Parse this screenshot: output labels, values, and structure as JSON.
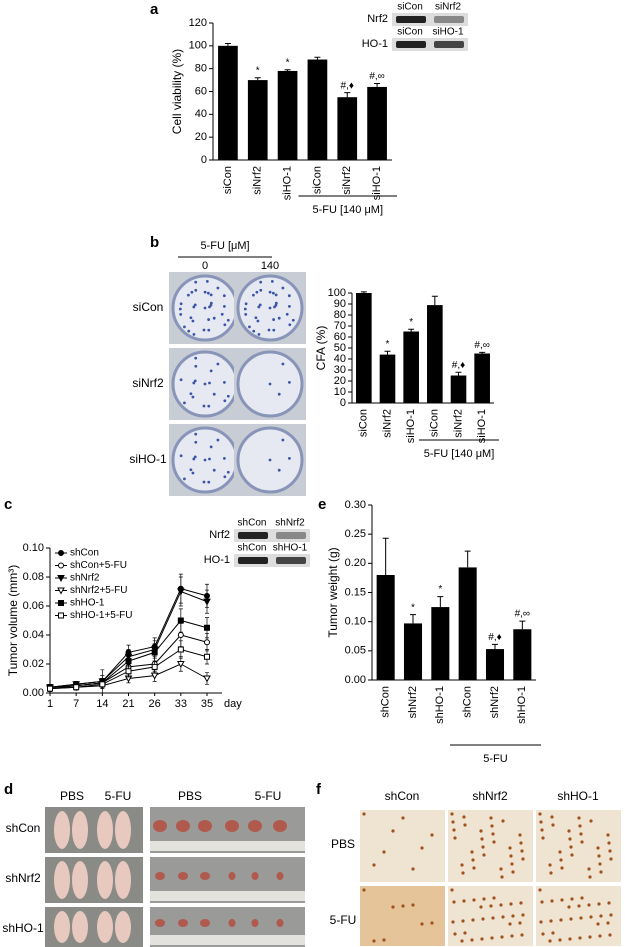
{
  "chart_data": [
    {
      "letter": "a",
      "type": "bar",
      "y_label": "Cell viability (%)",
      "categories": [
        "siCon",
        "siNrf2",
        "siHO-1",
        "siCon",
        "siNrf2",
        "siHO-1"
      ],
      "values": [
        100,
        70,
        78,
        88,
        55,
        64
      ],
      "errors": [
        2,
        2,
        1,
        2,
        4,
        3
      ],
      "annotations": [
        null,
        "*",
        "*",
        null,
        "#,♦",
        "#,∞"
      ],
      "group_label": "5-FU [140 μM]",
      "color": "#000000",
      "ylim": [
        0,
        120
      ],
      "yticks": [
        0,
        20,
        40,
        60,
        80,
        100,
        120
      ],
      "blot": [
        {
          "label": "Nrf2",
          "lanes": [
            "siCon",
            "siNrf2"
          ]
        },
        {
          "label": "HO-1",
          "lanes": [
            "siCon",
            "siHO-1"
          ]
        }
      ]
    },
    {
      "letter": "b",
      "type": "bar",
      "y_label": "CFA (%)",
      "categories": [
        "siCon",
        "siNrf2",
        "siHO-1",
        "siCon",
        "siNrf2",
        "siHO-1"
      ],
      "values": [
        100,
        44,
        65,
        89,
        25,
        45
      ],
      "errors": [
        1,
        3,
        2,
        8,
        3,
        1
      ],
      "annotations": [
        null,
        "*",
        "*",
        null,
        "#,♦",
        "#,∞"
      ],
      "group_label": "5-FU [140 μM]",
      "color": "#000000",
      "ylim": [
        0,
        100
      ],
      "yticks": [
        0,
        10,
        20,
        30,
        40,
        50,
        60,
        70,
        80,
        90,
        100
      ],
      "plates": {
        "header": "5-FU [μM]",
        "columns": [
          "0",
          "140"
        ],
        "rows": [
          "siCon",
          "siNrf2",
          "siHO-1"
        ]
      }
    },
    {
      "letter": "c",
      "type": "line",
      "y_label": "Tumor volume (mm³)",
      "x_unit": "day",
      "categories": [
        "1",
        "7",
        "14",
        "21",
        "26",
        "33",
        "35"
      ],
      "series": [
        {
          "name": "shCon",
          "marker": "circle",
          "color": "#000000",
          "values": [
            0.004,
            0.006,
            0.008,
            0.028,
            0.032,
            0.072,
            0.067
          ],
          "errors": [
            0.002,
            0.002,
            0.004,
            0.005,
            0.006,
            0.01,
            0.008
          ]
        },
        {
          "name": "shCon+5-FU",
          "marker": "circle-open",
          "color": "#000000",
          "values": [
            0.003,
            0.005,
            0.007,
            0.018,
            0.02,
            0.04,
            0.035
          ],
          "errors": [
            0.002,
            0.002,
            0.003,
            0.004,
            0.005,
            0.008,
            0.006
          ]
        },
        {
          "name": "shNrf2",
          "marker": "triangle",
          "color": "#000000",
          "values": [
            0.004,
            0.006,
            0.008,
            0.025,
            0.03,
            0.07,
            0.063
          ],
          "errors": [
            0.002,
            0.002,
            0.008,
            0.005,
            0.006,
            0.01,
            0.008
          ]
        },
        {
          "name": "shNrf2+5-FU",
          "marker": "triangle-open",
          "color": "#000000",
          "values": [
            0.003,
            0.004,
            0.005,
            0.01,
            0.012,
            0.02,
            0.01
          ],
          "errors": [
            0.001,
            0.002,
            0.002,
            0.003,
            0.004,
            0.005,
            0.004
          ]
        },
        {
          "name": "shHO-1",
          "marker": "square",
          "color": "#000000",
          "values": [
            0.004,
            0.005,
            0.007,
            0.022,
            0.028,
            0.05,
            0.045
          ],
          "errors": [
            0.002,
            0.002,
            0.003,
            0.004,
            0.006,
            0.008,
            0.007
          ]
        },
        {
          "name": "shHO-1+5-FU",
          "marker": "square-open",
          "color": "#000000",
          "values": [
            0.003,
            0.004,
            0.006,
            0.015,
            0.018,
            0.03,
            0.025
          ],
          "errors": [
            0.001,
            0.002,
            0.002,
            0.004,
            0.004,
            0.006,
            0.005
          ]
        }
      ],
      "ylim": [
        0,
        0.1
      ],
      "yticks": [
        {
          "value": 0,
          "label": "0.00"
        },
        {
          "value": 0.02,
          "label": "0.02"
        },
        {
          "value": 0.04,
          "label": "0.04"
        },
        {
          "value": 0.06,
          "label": "0.06"
        },
        {
          "value": 0.08,
          "label": "0.08"
        },
        {
          "value": 0.1,
          "label": "0.10"
        }
      ],
      "legend": "top-left",
      "blot": [
        {
          "label": "Nrf2",
          "lanes": [
            "shCon",
            "shNrf2"
          ]
        },
        {
          "label": "HO-1",
          "lanes": [
            "shCon",
            "shHO-1"
          ]
        }
      ]
    },
    {
      "letter": "e",
      "type": "bar",
      "y_label": "Tumor weight (g)",
      "categories": [
        "shCon",
        "shNrf2",
        "shHO-1",
        "shCon",
        "shNrf2",
        "shHO-1"
      ],
      "values": [
        0.18,
        0.097,
        0.125,
        0.193,
        0.053,
        0.087
      ],
      "errors": [
        0.063,
        0.015,
        0.018,
        0.028,
        0.008,
        0.014
      ],
      "annotations": [
        null,
        "*",
        "*",
        null,
        "#,♦",
        "#,∞"
      ],
      "group_label": "5-FU",
      "color": "#000000",
      "ylim": [
        0,
        0.3
      ],
      "yticks": [
        {
          "value": 0,
          "label": "0.00"
        },
        {
          "value": 0.05,
          "label": "0.05"
        },
        {
          "value": 0.1,
          "label": "0.10"
        },
        {
          "value": 0.15,
          "label": "0.15"
        },
        {
          "value": 0.2,
          "label": "0.20"
        },
        {
          "value": 0.25,
          "label": "0.25"
        },
        {
          "value": 0.3,
          "label": "0.30"
        }
      ]
    }
  ],
  "figure_d": {
    "letter": "d",
    "columns": [
      "PBS",
      "5-FU",
      "PBS",
      "5-FU"
    ],
    "rows": [
      "shCon",
      "shNrf2",
      "shHO-1"
    ]
  },
  "figure_f": {
    "letter": "f",
    "columns": [
      "shCon",
      "shNrf2",
      "shHO-1"
    ],
    "rows": [
      "PBS",
      "5-FU"
    ]
  }
}
